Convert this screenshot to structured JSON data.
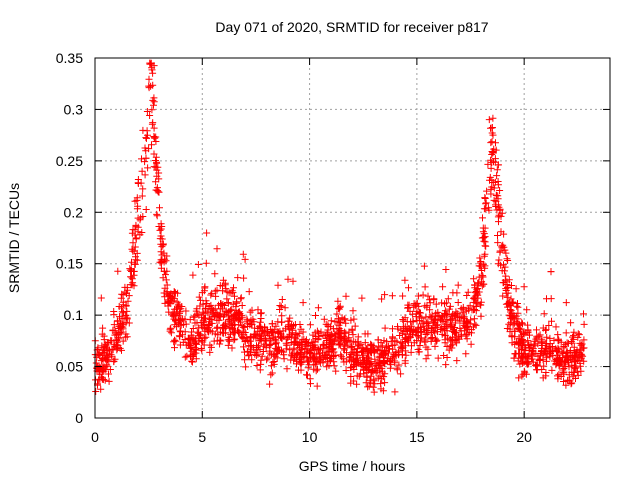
{
  "chart_data": {
    "type": "scatter",
    "title": "Day 071 of 2020, SRMTID for receiver p817",
    "xlabel": "GPS time / hours",
    "ylabel": "SRMTID / TECUs",
    "xlim": [
      0,
      24
    ],
    "ylim": [
      0,
      0.35
    ],
    "x_ticks": [
      "0",
      "5",
      "10",
      "15",
      "20"
    ],
    "y_ticks": [
      "0",
      "0.05",
      "0.1",
      "0.15",
      "0.2",
      "0.25",
      "0.3",
      "0.35"
    ],
    "x_tick_values": [
      0,
      5,
      10,
      15,
      20
    ],
    "y_tick_values": [
      0,
      0.05,
      0.1,
      0.15,
      0.2,
      0.25,
      0.3,
      0.35
    ],
    "grid": true,
    "marker": "+",
    "color": "#ff0000",
    "series": [
      {
        "name": "SRMTID",
        "x_range": [
          0,
          22.8
        ],
        "point_count": 2200,
        "x": [
          0.0,
          0.3,
          0.6,
          0.9,
          1.2,
          1.5,
          1.8,
          2.0,
          2.2,
          2.4,
          2.5,
          2.6,
          2.7,
          2.8,
          3.0,
          3.2,
          3.5,
          3.8,
          4.2,
          4.6,
          5.0,
          5.5,
          6.0,
          6.5,
          6.8,
          7.2,
          7.6,
          8.0,
          8.5,
          9.0,
          9.5,
          10.0,
          10.5,
          11.0,
          11.4,
          11.8,
          12.2,
          12.6,
          13.0,
          13.5,
          14.0,
          14.5,
          14.8,
          15.2,
          15.6,
          16.0,
          16.5,
          17.0,
          17.5,
          17.8,
          18.1,
          18.3,
          18.5,
          18.8,
          19.2,
          19.6,
          20.0,
          20.4,
          20.8,
          21.2,
          21.6,
          22.0,
          22.4,
          22.8
        ],
        "y": [
          0.05,
          0.055,
          0.06,
          0.075,
          0.09,
          0.11,
          0.15,
          0.19,
          0.23,
          0.27,
          0.3,
          0.32,
          0.3,
          0.26,
          0.2,
          0.14,
          0.11,
          0.1,
          0.08,
          0.075,
          0.095,
          0.1,
          0.1,
          0.1,
          0.09,
          0.08,
          0.075,
          0.07,
          0.075,
          0.08,
          0.07,
          0.06,
          0.065,
          0.07,
          0.085,
          0.065,
          0.06,
          0.055,
          0.055,
          0.06,
          0.065,
          0.08,
          0.1,
          0.09,
          0.085,
          0.09,
          0.09,
          0.085,
          0.1,
          0.12,
          0.16,
          0.22,
          0.26,
          0.2,
          0.12,
          0.08,
          0.065,
          0.07,
          0.065,
          0.065,
          0.06,
          0.055,
          0.055,
          0.07
        ]
      }
    ]
  }
}
